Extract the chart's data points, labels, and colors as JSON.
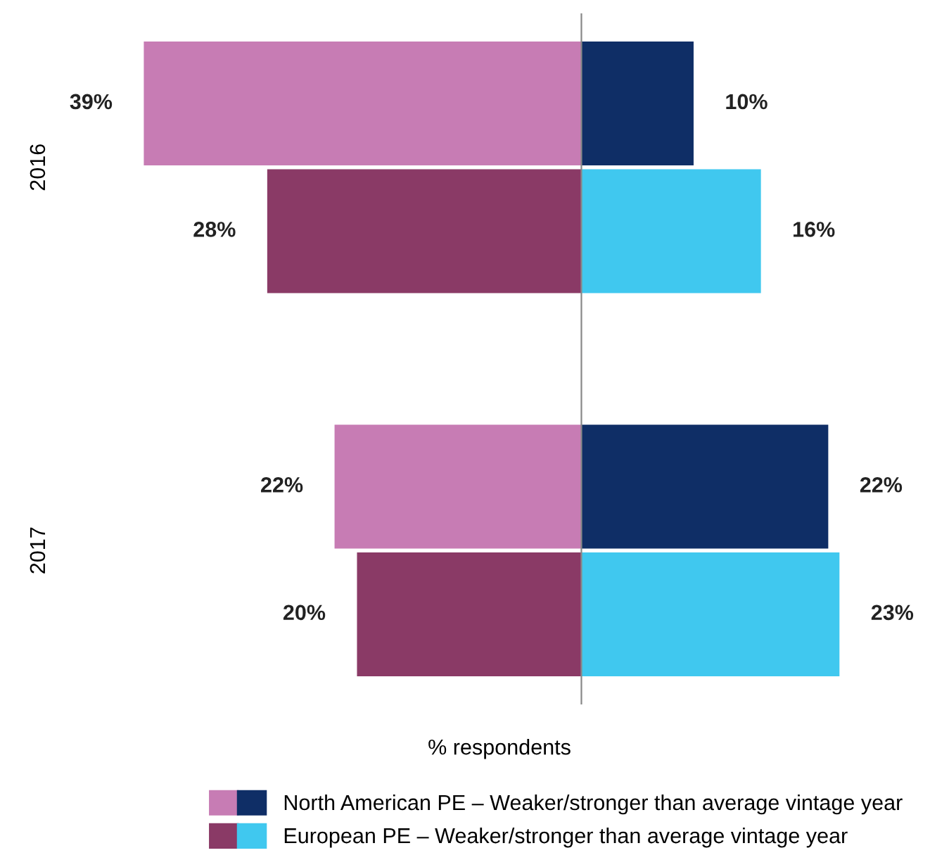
{
  "chart_data": [
    {
      "type": "bar",
      "orientation": "horizontal",
      "xlabel": "% respondents",
      "categories": [
        "2016",
        "2017"
      ],
      "tick_labels": "y",
      "grid": false,
      "series": [
        {
          "color": "#c77cb4",
          "values": [
            39,
            22
          ],
          "value_labels": [
            "39%",
            "22%"
          ]
        },
        {
          "color": "#8a3a66",
          "values": [
            28,
            20
          ],
          "value_labels": [
            "28%",
            "20%"
          ]
        }
      ]
    },
    {
      "type": "bar",
      "orientation": "horizontal",
      "categories": [
        "2016",
        "2017"
      ],
      "tick_labels": false,
      "grid": false,
      "legend": "bottom",
      "series": [
        {
          "name": "North American PE – Weaker/stronger than average vintage year",
          "color": "#0f2e66",
          "values": [
            10,
            22
          ],
          "value_labels": [
            "10%",
            "22%"
          ]
        },
        {
          "name": "European PE – Weaker/stronger than average vintage year",
          "color": "#40c8ef",
          "values": [
            16,
            23
          ],
          "value_labels": [
            "16%",
            "23%"
          ]
        }
      ]
    }
  ]
}
